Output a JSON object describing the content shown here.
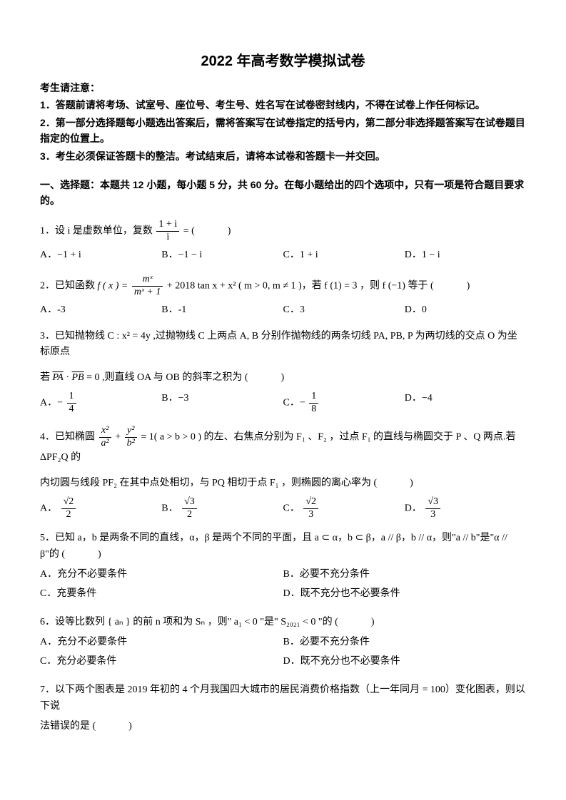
{
  "title": "2022 年高考数学模拟试卷",
  "notice_head": "考生请注意：",
  "notice": [
    "1．答题前请将考场、试室号、座位号、考生号、姓名写在试卷密封线内，不得在试卷上作任何标记。",
    "2．第一部分选择题每小题选出答案后，需将答案写在试卷指定的括号内，第二部分非选择题答案写在试卷题目指定的位置上。",
    "3．考生必须保证答题卡的整洁。考试结束后，请将本试卷和答题卡一并交回。"
  ],
  "section1": "一、选择题：本题共 12 小题，每小题 5 分，共 60 分。在每小题给出的四个选项中，只有一项是符合题目要求的。",
  "blank": "(  )",
  "q1": {
    "stem_a": "1．设 i 是虚数单位，复数",
    "frac_num": "1 + i",
    "frac_den": "i",
    "stem_b": " = ",
    "opts": {
      "A": "A．−1 + i",
      "B": "B．−1 − i",
      "C": "C．1 + i",
      "D": "D．1 − i"
    }
  },
  "q2": {
    "stem_a": "2．已知函数 ",
    "fx": "f ( x ) = ",
    "frac_num": "mˣ",
    "frac_den": "mˣ + 1",
    "stem_b": " + 2018 tan x + x² ( m > 0, m ≠ 1 )，若 f (1) = 3 ，则 f (−1) 等于",
    "opts": {
      "A": "A．-3",
      "B": "B．-1",
      "C": "C．3",
      "D": "D．0"
    }
  },
  "q3": {
    "line1": "3．已知抛物线 C : x² = 4y ,过抛物线 C 上两点 A, B 分别作抛物线的两条切线 PA, PB, P 为两切线的交点 O 为坐标原点",
    "line2_a": "若 ",
    "line2_pa": "PA",
    "line2_dot": "·",
    "line2_pb": "PB",
    "line2_b": " = 0 ,则直线 OA 与 OB 的斜率之积为",
    "opts": {
      "A_pre": "A．−",
      "A_num": "1",
      "A_den": "4",
      "B": "B．−3",
      "C_pre": "C．−",
      "C_num": "1",
      "C_den": "8",
      "D": "D．−4"
    }
  },
  "q4": {
    "stem_a": "4．已知椭圆 ",
    "t1_num": "x²",
    "t1_den": "a²",
    "plus": " + ",
    "t2_num": "y²",
    "t2_den": "b²",
    "stem_b": " = 1( a > b > 0 ) 的左、右焦点分别为 F₁ 、F₂ ，过点 F₁ 的直线与椭圆交于 P 、Q 两点.若 ΔPF₂Q 的",
    "line2": "内切圆与线段 PF₂ 在其中点处相切，与 PQ 相切于点 F₁ ，则椭圆的离心率为",
    "opts": {
      "A_pre": "A．",
      "A_num": "√2",
      "A_den": "2",
      "B_pre": "B．",
      "B_num": "√3",
      "B_den": "2",
      "C_pre": "C．",
      "C_num": "√2",
      "C_den": "3",
      "D_pre": "D．",
      "D_num": "√3",
      "D_den": "3"
    }
  },
  "q5": {
    "stem": "5．已知 a，b 是两条不同的直线，α，β 是两个不同的平面，且 a ⊂ α，b ⊂ β，a // β，b // α，则\"a // b\"是\"α // β\"的",
    "opts": {
      "A": "A．充分不必要条件",
      "B": "B．必要不充分条件",
      "C": "C．充要条件",
      "D": "D．既不充分也不必要条件"
    }
  },
  "q6": {
    "stem": "6．设等比数列 { aₙ } 的前 n 项和为 Sₙ ，则\" a₁ < 0 \"是\" S₂₀₂₁ < 0 \"的",
    "opts": {
      "A": "A．充分不必要条件",
      "B": "B．必要不充分条件",
      "C": "C．充分必要条件",
      "D": "D．既不充分也不必要条件"
    }
  },
  "q7": {
    "line1": "7．以下两个图表是 2019 年初的 4 个月我国四大城市的居民消费价格指数（上一年同月 = 100）变化图表，则以下说",
    "line2": "法错误的是"
  }
}
